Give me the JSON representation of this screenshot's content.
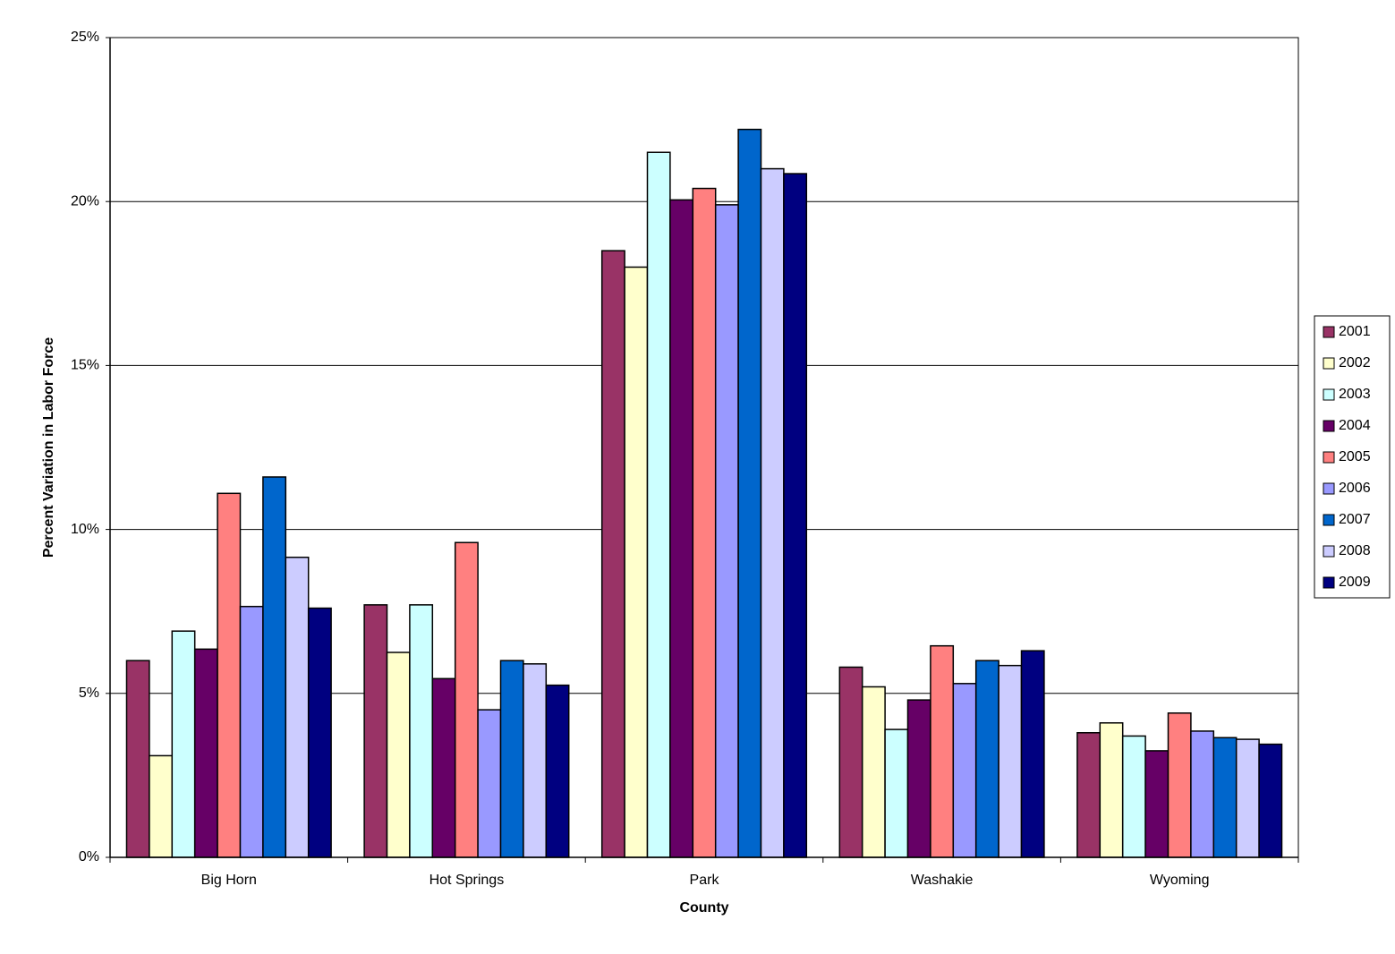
{
  "chart_data": {
    "type": "bar",
    "x_label": "County",
    "y_label": "Percent Variation in Labor Force",
    "categories": [
      "Big Horn",
      "Hot Springs",
      "Park",
      "Washakie",
      "Wyoming"
    ],
    "series": [
      {
        "name": "2001",
        "color": "#993366",
        "values": [
          6.0,
          7.7,
          18.5,
          5.8,
          3.8
        ]
      },
      {
        "name": "2002",
        "color": "#FFFFCC",
        "values": [
          3.1,
          6.25,
          18.0,
          5.2,
          4.1
        ]
      },
      {
        "name": "2003",
        "color": "#CCFFFF",
        "values": [
          6.9,
          7.7,
          21.5,
          3.9,
          3.7
        ]
      },
      {
        "name": "2004",
        "color": "#660066",
        "values": [
          6.35,
          5.45,
          20.05,
          4.8,
          3.25
        ]
      },
      {
        "name": "2005",
        "color": "#FF8080",
        "values": [
          11.1,
          9.6,
          20.4,
          6.45,
          4.4
        ]
      },
      {
        "name": "2006",
        "color": "#9999FF",
        "values": [
          7.65,
          4.5,
          19.9,
          5.3,
          3.85
        ]
      },
      {
        "name": "2007",
        "color": "#0066CC",
        "values": [
          11.6,
          6.0,
          22.2,
          6.0,
          3.65
        ]
      },
      {
        "name": "2008",
        "color": "#CCCCFF",
        "values": [
          9.15,
          5.9,
          21.0,
          5.85,
          3.6
        ]
      },
      {
        "name": "2009",
        "color": "#000080",
        "values": [
          7.6,
          5.25,
          20.85,
          6.3,
          3.45
        ]
      }
    ],
    "ylim": [
      0,
      25
    ],
    "yticks": [
      {
        "value": 0,
        "label": "0%"
      },
      {
        "value": 5,
        "label": "5%"
      },
      {
        "value": 10,
        "label": "10%"
      },
      {
        "value": 15,
        "label": "15%"
      },
      {
        "value": 20,
        "label": "20%"
      },
      {
        "value": 25,
        "label": "25%"
      }
    ],
    "grid": true,
    "legend": "right"
  }
}
